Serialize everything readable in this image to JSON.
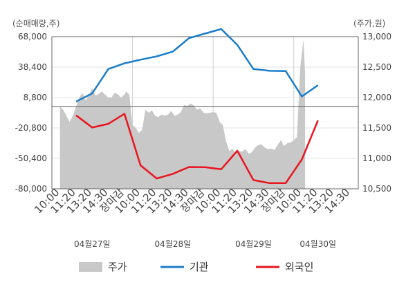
{
  "chart_data": {
    "type": "line",
    "left_unit": "(순매매량,주)",
    "right_unit": "(주가,원)",
    "left_axis": {
      "ticks": [
        "68,000",
        "38,400",
        "8,800",
        "-20,800",
        "-50,400",
        "-80,000"
      ],
      "ylim": [
        -80000,
        68000
      ]
    },
    "right_axis": {
      "ticks": [
        "13,000",
        "12,500",
        "12,000",
        "11,500",
        "11,000",
        "10,500"
      ],
      "ylim": [
        10500,
        13000
      ]
    },
    "x_labels": [
      {
        "i": 0,
        "text": "10:00",
        "color": "#444444"
      },
      {
        "i": 1,
        "text": "11:20",
        "color": "#444444"
      },
      {
        "i": 2,
        "text": "13:20",
        "color": "#444444"
      },
      {
        "i": 3,
        "text": "14:30",
        "color": "#444444"
      },
      {
        "i": 4,
        "text": "장마감",
        "color": "#e8141e"
      },
      {
        "i": 5,
        "text": "10:00",
        "color": "#444444"
      },
      {
        "i": 6,
        "text": "11:20",
        "color": "#444444"
      },
      {
        "i": 7,
        "text": "13:20",
        "color": "#444444"
      },
      {
        "i": 8,
        "text": "14:30",
        "color": "#444444"
      },
      {
        "i": 9,
        "text": "장마감",
        "color": "#e8141e"
      },
      {
        "i": 10,
        "text": "10:00",
        "color": "#444444"
      },
      {
        "i": 11,
        "text": "11:20",
        "color": "#444444"
      },
      {
        "i": 12,
        "text": "13:20",
        "color": "#444444"
      },
      {
        "i": 13,
        "text": "14:30",
        "color": "#444444"
      },
      {
        "i": 14,
        "text": "장마감",
        "color": "#e8141e"
      },
      {
        "i": 15,
        "text": "10:00",
        "color": "#444444"
      },
      {
        "i": 16,
        "text": "11:20",
        "color": "#444444"
      },
      {
        "i": 17,
        "text": "13:20",
        "color": "#444444"
      },
      {
        "i": 18,
        "text": "14:30",
        "color": "#444444"
      }
    ],
    "day_labels": [
      {
        "i": 2,
        "text": "04월27일"
      },
      {
        "i": 7,
        "text": "04월28일"
      },
      {
        "i": 12,
        "text": "04월29일"
      },
      {
        "i": 16,
        "text": "04월30일"
      }
    ],
    "day_boundaries": [
      4.5,
      9.5,
      14.5
    ],
    "reference_line": 11850,
    "series": [
      {
        "name": "주가",
        "type": "area",
        "axis": "right",
        "color": "#c8c8c8",
        "x": [
          0,
          0.2,
          0.4,
          0.6,
          0.8,
          1.0,
          1.2,
          1.4,
          1.6,
          1.8,
          2.0,
          2.2,
          2.4,
          2.6,
          2.8,
          3.0,
          3.2,
          3.4,
          3.6,
          3.8,
          4.0,
          4.1,
          4.3,
          4.5,
          4.7,
          4.9,
          5.1,
          5.3,
          5.5,
          5.7,
          5.9,
          6.1,
          6.3,
          6.5,
          6.7,
          6.9,
          7.1,
          7.3,
          7.5,
          7.7,
          7.9,
          8.1,
          8.3,
          8.5,
          8.7,
          8.9,
          9.1,
          9.3,
          9.5,
          9.7,
          9.9,
          10.1,
          10.3,
          10.5,
          10.7,
          10.9,
          11.1,
          11.3,
          11.5,
          11.7,
          11.9,
          12.1,
          12.3,
          12.5,
          12.7,
          12.9,
          13.1,
          13.3,
          13.5,
          13.7,
          13.9,
          14.1,
          14.3,
          14.5,
          14.7,
          14.9,
          15.1,
          15.2
        ],
        "values": [
          11850,
          11800,
          11700,
          11600,
          11700,
          11850,
          12000,
          12080,
          11950,
          12050,
          12150,
          12030,
          12060,
          12100,
          12050,
          12000,
          12000,
          12080,
          12050,
          12000,
          12050,
          12100,
          12050,
          11550,
          11500,
          11420,
          11470,
          11800,
          11750,
          11790,
          11700,
          11680,
          11720,
          11700,
          11720,
          11780,
          11700,
          11720,
          11760,
          11880,
          11860,
          11900,
          11870,
          11800,
          11820,
          11750,
          11740,
          11750,
          11760,
          11750,
          11600,
          11550,
          11280,
          11120,
          11160,
          11080,
          11120,
          11110,
          11150,
          11080,
          11100,
          11180,
          11220,
          11230,
          11180,
          11150,
          11160,
          11140,
          11220,
          11300,
          11200,
          11250,
          11260,
          11300,
          11350,
          12500,
          12950,
          12400
        ]
      },
      {
        "name": "기관",
        "type": "line",
        "axis": "left",
        "color": "#1a7dc8",
        "x": [
          1,
          2,
          3,
          4,
          5,
          6,
          7,
          8,
          9,
          10,
          11,
          12,
          13,
          14,
          15,
          16
        ],
        "values": [
          4800,
          12800,
          36500,
          42000,
          45600,
          48800,
          53500,
          66500,
          71000,
          75400,
          60000,
          36500,
          34800,
          34500,
          9800,
          20800
        ]
      },
      {
        "name": "외국인",
        "type": "line",
        "axis": "left",
        "color": "#e8141e",
        "x": [
          1,
          2,
          3,
          4,
          5,
          6,
          7,
          8,
          9,
          10,
          11,
          12,
          13,
          14,
          15,
          16
        ],
        "values": [
          -8500,
          -20400,
          -16800,
          -7000,
          -57200,
          -70000,
          -65500,
          -58800,
          -59000,
          -61000,
          -43000,
          -71500,
          -74500,
          -74500,
          -51500,
          -13500
        ]
      }
    ],
    "legend": [
      {
        "name": "주가",
        "swatch": "area",
        "color": "#c8c8c8"
      },
      {
        "name": "기관",
        "swatch": "line",
        "color": "#1a7dc8"
      },
      {
        "name": "외국인",
        "swatch": "line",
        "color": "#e8141e"
      }
    ],
    "legend_position": "bottom-center",
    "grid": true
  }
}
